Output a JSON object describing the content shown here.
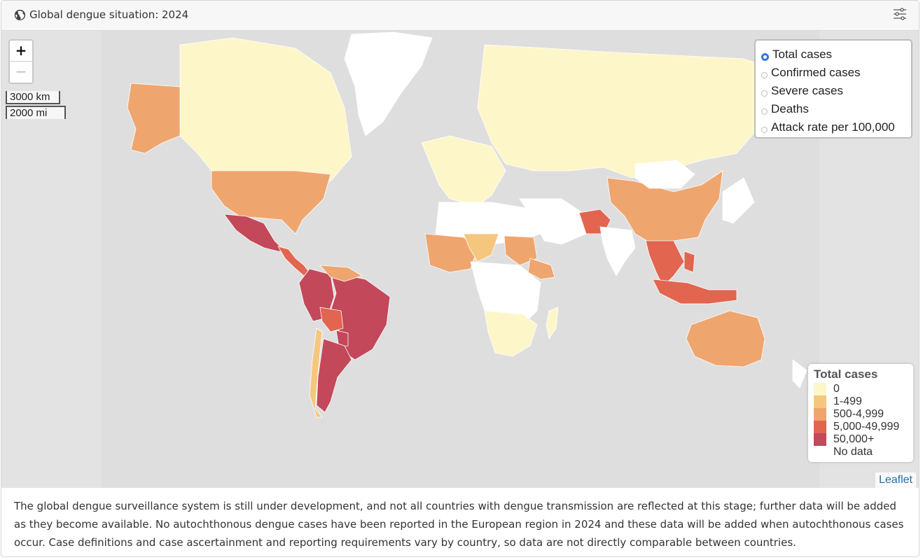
{
  "header": {
    "title": "Global dengue situation: 2024",
    "globe_icon": "globe-icon",
    "filter_icon": "sliders-icon"
  },
  "zoom": {
    "in_label": "+",
    "out_label": "−"
  },
  "scale": {
    "km_label": "3000 km",
    "mi_label": "2000 mi"
  },
  "layers": {
    "options": [
      {
        "label": "Total cases",
        "selected": true
      },
      {
        "label": "Confirmed cases",
        "selected": false
      },
      {
        "label": "Severe cases",
        "selected": false
      },
      {
        "label": "Deaths",
        "selected": false
      },
      {
        "label": "Attack rate per 100,000",
        "selected": false
      }
    ]
  },
  "legend": {
    "title": "Total cases",
    "items": [
      {
        "label": "0",
        "color": "#fdf6c9"
      },
      {
        "label": "1-499",
        "color": "#f5c77e"
      },
      {
        "label": "500-4,999",
        "color": "#efa56e"
      },
      {
        "label": "5,000-49,999",
        "color": "#e2654f"
      },
      {
        "label": "50,000+",
        "color": "#c3485a"
      },
      {
        "label": "No data",
        "color": "#ffffff"
      }
    ]
  },
  "attribution": "Leaflet",
  "footer": {
    "text": "The global dengue surveillance system is still under development, and not all countries with dengue transmission are reflected at this stage; further data will be added as they become available. No autochthonous dengue cases have been reported in the European region in 2024 and these data will be added when autochthonous cases occur. Case definitions and case ascertainment and reporting requirements vary by country, so data are not directly comparable between countries."
  },
  "map_regions": [
    {
      "name": "greenland",
      "category": "No data"
    },
    {
      "name": "canada",
      "category": "0"
    },
    {
      "name": "alaska",
      "category": "500-4,999"
    },
    {
      "name": "united-states",
      "category": "500-4,999"
    },
    {
      "name": "mexico",
      "category": "50,000+"
    },
    {
      "name": "central-america",
      "category": "5,000-49,999"
    },
    {
      "name": "brazil",
      "category": "50,000+"
    },
    {
      "name": "andean-south-america",
      "category": "50,000+"
    },
    {
      "name": "bolivia",
      "category": "5,000-49,999"
    },
    {
      "name": "paraguay",
      "category": "50,000+"
    },
    {
      "name": "argentina",
      "category": "50,000+"
    },
    {
      "name": "chile",
      "category": "1-499"
    },
    {
      "name": "guianas",
      "category": "500-4,999"
    },
    {
      "name": "europe",
      "category": "0"
    },
    {
      "name": "russia",
      "category": "0"
    },
    {
      "name": "north-africa",
      "category": "No data"
    },
    {
      "name": "west-africa",
      "category": "500-4,999"
    },
    {
      "name": "mali-niger",
      "category": "1-499"
    },
    {
      "name": "sudan",
      "category": "500-4,999"
    },
    {
      "name": "ethiopia",
      "category": "500-4,999"
    },
    {
      "name": "central-africa",
      "category": "No data"
    },
    {
      "name": "southern-africa",
      "category": "0"
    },
    {
      "name": "madagascar",
      "category": "0"
    },
    {
      "name": "middle-east",
      "category": "No data"
    },
    {
      "name": "pakistan",
      "category": "5,000-49,999"
    },
    {
      "name": "india",
      "category": "No data"
    },
    {
      "name": "china",
      "category": "500-4,999"
    },
    {
      "name": "mongolia",
      "category": "No data"
    },
    {
      "name": "southeast-asia",
      "category": "5,000-49,999"
    },
    {
      "name": "indonesia",
      "category": "5,000-49,999"
    },
    {
      "name": "philippines",
      "category": "5,000-49,999"
    },
    {
      "name": "australia",
      "category": "500-4,999"
    },
    {
      "name": "japan",
      "category": "No data"
    },
    {
      "name": "new-zealand",
      "category": "No data"
    }
  ]
}
